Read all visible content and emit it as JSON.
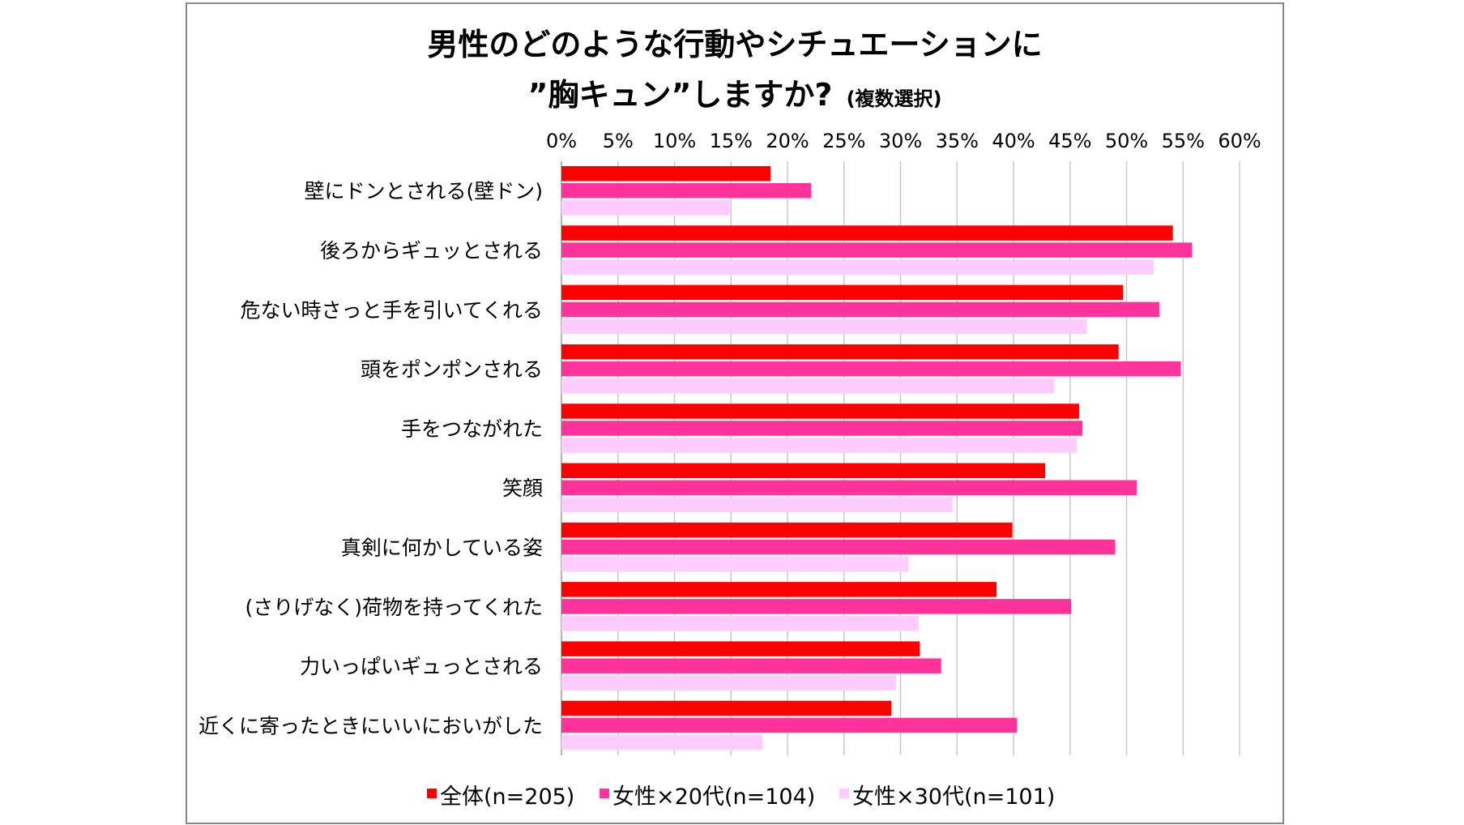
{
  "chart_data": {
    "type": "bar",
    "orientation": "horizontal",
    "title": "男性のどのような行動やシチュエーションに",
    "title_line2": "”胸キュン”しますか?",
    "subtitle": "(複数選択)",
    "categories": [
      "壁にドンとされる(壁ドン)",
      "後ろからギュッとされる",
      "危ない時さっと手を引いてくれる",
      "頭をポンポンされる",
      "手をつながれた",
      "笑顔",
      "真剣に何かしている姿",
      "(さりげなく)荷物を持ってくれた",
      "力いっぱいギュっとされる",
      "近くに寄ったときにいいにおいがした"
    ],
    "series": [
      {
        "name": "全体(n=205)",
        "color": "#ff0000",
        "values": [
          18.5,
          54.1,
          49.7,
          49.3,
          45.8,
          42.8,
          39.9,
          38.5,
          31.7,
          29.2
        ]
      },
      {
        "name": "女性×20代(n=104)",
        "color": "#ff3399",
        "values": [
          22.1,
          55.8,
          52.9,
          54.8,
          46.1,
          50.9,
          49.0,
          45.1,
          33.6,
          40.3
        ]
      },
      {
        "name": "女性×30代(n=101)",
        "color": "#ffccff",
        "values": [
          14.9,
          52.4,
          46.5,
          43.6,
          45.6,
          34.6,
          30.7,
          31.6,
          29.6,
          17.8
        ]
      }
    ],
    "xlim": [
      0,
      60
    ],
    "xticks": [
      "0%",
      "5%",
      "10%",
      "15%",
      "20%",
      "25%",
      "30%",
      "35%",
      "40%",
      "45%",
      "50%",
      "55%",
      "60%"
    ],
    "x_axis_position": "top",
    "grid": true,
    "legend_position": "bottom"
  }
}
